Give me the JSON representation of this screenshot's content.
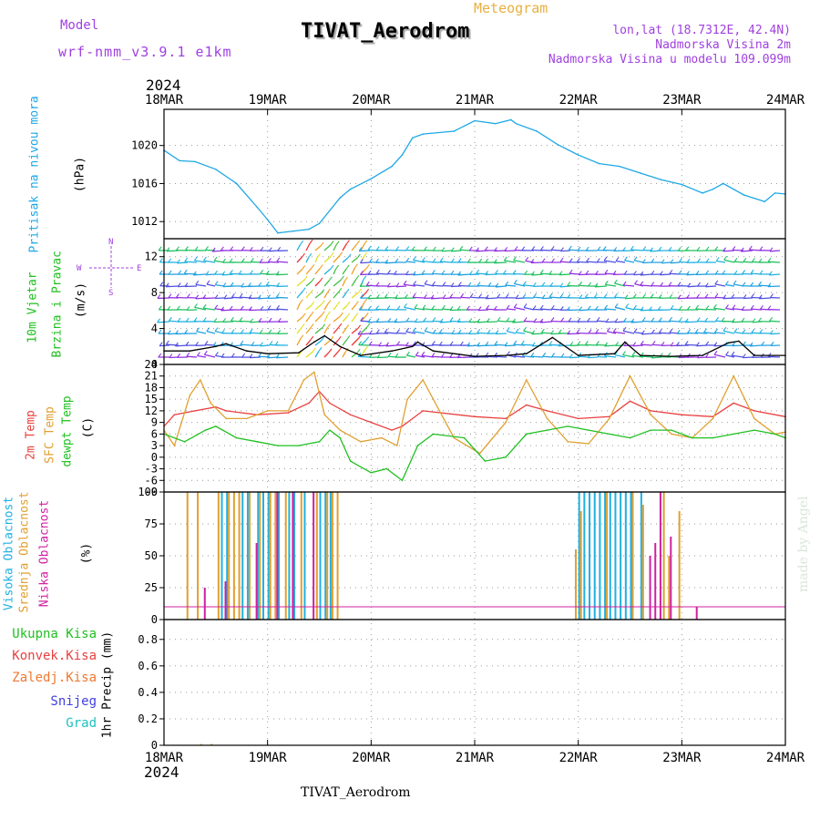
{
  "header": {
    "title": "TIVAT_Aerodrom",
    "meteogram": "Meteogram",
    "model_label": "Model",
    "model_name": "wrf-nmm_v3.9.1 e1km",
    "lonlat": "lon,lat (18.7312E, 42.4N)",
    "altitude": "Nadmorska Visina 2m",
    "model_altitude": "Nadmorska Visina u modelu 109.099m",
    "footer": "TIVAT_Aerodrom",
    "watermark": "made by Angel",
    "year_top": "2024",
    "year_bottom": "2024"
  },
  "colors": {
    "pressure": "#1ea8e6",
    "temp2m": "#e84040",
    "sfc": "#e0a030",
    "dew": "#20c020",
    "cloud_high": "#20b0e0",
    "cloud_mid": "#e0a030",
    "cloud_low": "#d020a0",
    "label_purple": "#a040e0"
  },
  "panel_labels": {
    "pressure": [
      "Pritisak na nivou mora",
      "(hPa)"
    ],
    "wind": [
      "10m Vjetar",
      "Brzina i Pravac",
      "(m/s)"
    ],
    "temp": [
      "2m Temp",
      "SFC Temp",
      "dewpt Temp",
      "(C)"
    ],
    "cloud": [
      "Visoka Oblacnost",
      "Srednja Oblacnost",
      "Niska Oblacnost",
      "(%)"
    ],
    "precip": [
      "Ukupna Kisa",
      "Konvek.Kisa",
      "Zaledj.Kisa",
      "Snijeg",
      "Grad",
      "1hr Precip (mm)"
    ],
    "compass": [
      "N",
      "S",
      "W",
      "E"
    ]
  },
  "chart_data": [
    {
      "type": "line",
      "panel": "pressure",
      "x_categories": [
        "18MAR",
        "19MAR",
        "20MAR",
        "21MAR",
        "22MAR",
        "23MAR",
        "24MAR"
      ],
      "ylabel": "(hPa)",
      "yticks": [
        "1020",
        "1016",
        "1012"
      ],
      "ylim": [
        1010.2,
        1023.8
      ],
      "series": [
        {
          "name": "Pritisak na nivou mora",
          "x": [
            0,
            0.15,
            0.3,
            0.5,
            0.7,
            0.9,
            1.0,
            1.1,
            1.25,
            1.4,
            1.5,
            1.7,
            1.8,
            2.0,
            2.2,
            2.3,
            2.4,
            2.5,
            2.8,
            3.0,
            3.2,
            3.35,
            3.4,
            3.6,
            3.8,
            4.0,
            4.2,
            4.4,
            4.6,
            4.8,
            5.0,
            5.2,
            5.3,
            5.4,
            5.6,
            5.8,
            5.9,
            6.0
          ],
          "values": [
            1019.5,
            1018.4,
            1018.3,
            1017.5,
            1016.0,
            1013.5,
            1012.2,
            1010.8,
            1011.0,
            1011.2,
            1011.8,
            1014.5,
            1015.4,
            1016.5,
            1017.8,
            1019.0,
            1020.8,
            1021.2,
            1021.5,
            1022.6,
            1022.3,
            1022.7,
            1022.3,
            1021.5,
            1020.1,
            1019.0,
            1018.1,
            1017.8,
            1017.1,
            1016.4,
            1015.9,
            1015.0,
            1015.4,
            1016.0,
            1014.8,
            1014.1,
            1015.0,
            1014.9
          ]
        }
      ]
    },
    {
      "type": "scatter",
      "panel": "wind",
      "x_categories": [
        "18MAR",
        "19MAR",
        "20MAR",
        "21MAR",
        "22MAR",
        "23MAR",
        "24MAR"
      ],
      "ylabel": "(m/s)",
      "yticks": [
        "12",
        "8",
        "4",
        "0"
      ],
      "ylim": [
        0,
        14
      ],
      "series": [
        {
          "name": "10m wind speed",
          "x": [
            0,
            0.25,
            0.5,
            0.6,
            0.8,
            1.0,
            1.3,
            1.45,
            1.55,
            1.7,
            1.9,
            2.2,
            2.4,
            2.45,
            2.6,
            3.0,
            3.3,
            3.5,
            3.75,
            4.0,
            4.35,
            4.45,
            4.6,
            4.9,
            5.2,
            5.45,
            5.55,
            5.7,
            6.0
          ],
          "values": [
            1.5,
            1.5,
            2.0,
            2.3,
            1.5,
            1.2,
            1.3,
            2.5,
            3.2,
            2.0,
            1.0,
            1.5,
            2.0,
            2.5,
            1.5,
            0.9,
            1.0,
            1.2,
            3.0,
            1.0,
            1.2,
            2.5,
            1.0,
            0.9,
            1.0,
            2.4,
            2.6,
            1.0,
            1.0
          ]
        }
      ]
    },
    {
      "type": "line",
      "panel": "temperature",
      "x_categories": [
        "18MAR",
        "19MAR",
        "20MAR",
        "21MAR",
        "22MAR",
        "23MAR",
        "24MAR"
      ],
      "ylabel": "(C)",
      "yticks": [
        "24",
        "21",
        "18",
        "15",
        "12",
        "9",
        "6",
        "3",
        "0",
        "-3",
        "-6",
        "-9"
      ],
      "ylim": [
        -9,
        24
      ],
      "series": [
        {
          "name": "2m Temp",
          "x": [
            0,
            0.1,
            0.3,
            0.5,
            0.6,
            0.9,
            1.2,
            1.4,
            1.5,
            1.6,
            1.8,
            2.0,
            2.2,
            2.3,
            2.5,
            3.0,
            3.3,
            3.5,
            3.7,
            4.0,
            4.3,
            4.5,
            4.7,
            5.0,
            5.3,
            5.5,
            5.7,
            6.0
          ],
          "values": [
            8,
            11,
            12,
            13,
            12,
            11,
            11.5,
            14,
            17,
            14,
            11,
            9,
            7,
            8,
            12,
            10.5,
            10,
            13.5,
            12,
            10,
            10.5,
            14.5,
            12,
            11,
            10.5,
            14,
            12,
            10.5
          ]
        },
        {
          "name": "SFC Temp",
          "x": [
            0,
            0.1,
            0.25,
            0.35,
            0.45,
            0.6,
            0.8,
            1.0,
            1.2,
            1.35,
            1.45,
            1.55,
            1.7,
            1.9,
            2.1,
            2.25,
            2.35,
            2.5,
            2.8,
            3.05,
            3.3,
            3.5,
            3.7,
            3.9,
            4.1,
            4.3,
            4.5,
            4.7,
            4.9,
            5.1,
            5.3,
            5.5,
            5.7,
            5.9,
            6.0
          ],
          "values": [
            7,
            3,
            16,
            20,
            14,
            10,
            10,
            12,
            12,
            20,
            22,
            11,
            7,
            4,
            5,
            3,
            15,
            20,
            5,
            1,
            9,
            20,
            10,
            4,
            3.5,
            10,
            21,
            11,
            6,
            5,
            10,
            21,
            10,
            6,
            6.5
          ]
        },
        {
          "name": "dewpt Temp",
          "x": [
            0,
            0.2,
            0.4,
            0.5,
            0.7,
            0.9,
            1.1,
            1.3,
            1.5,
            1.6,
            1.7,
            1.8,
            2.0,
            2.15,
            2.3,
            2.45,
            2.6,
            2.9,
            3.0,
            3.1,
            3.3,
            3.5,
            3.7,
            3.9,
            4.1,
            4.3,
            4.5,
            4.7,
            4.9,
            5.1,
            5.3,
            5.5,
            5.7,
            5.9,
            6.0
          ],
          "values": [
            6,
            4,
            7,
            8,
            5,
            4,
            3,
            3,
            4,
            7,
            5,
            -1,
            -4,
            -3,
            -6,
            3,
            6,
            5,
            2,
            -1,
            0,
            6,
            7,
            8,
            7,
            6,
            5,
            7,
            7,
            5,
            5,
            6,
            7,
            6,
            5
          ]
        }
      ]
    },
    {
      "type": "bar",
      "panel": "cloud",
      "x_categories": [
        "18MAR",
        "19MAR",
        "20MAR",
        "21MAR",
        "22MAR",
        "23MAR",
        "24MAR"
      ],
      "ylabel": "(%)",
      "yticks": [
        "100",
        "75",
        "50",
        "25",
        "0"
      ],
      "ylim": [
        0,
        100
      ],
      "series": [
        {
          "name": "Visoka Oblacnost",
          "x": [
            0.55,
            0.6,
            0.75,
            0.8,
            0.9,
            0.95,
            1.0,
            1.1,
            1.2,
            1.25,
            1.35,
            1.5,
            1.55,
            1.6,
            4.0,
            4.05,
            4.1,
            4.15,
            4.2,
            4.25,
            4.3,
            4.35,
            4.4,
            4.45,
            4.5,
            4.6
          ],
          "values": [
            100,
            100,
            100,
            100,
            100,
            100,
            100,
            100,
            100,
            100,
            100,
            100,
            100,
            100,
            100,
            100,
            100,
            100,
            100,
            100,
            100,
            100,
            100,
            100,
            100,
            100
          ]
        },
        {
          "name": "Srednja Oblacnost",
          "x": [
            0.2,
            0.3,
            0.5,
            0.6,
            0.65,
            0.7,
            0.8,
            0.9,
            1.0,
            1.05,
            1.15,
            1.3,
            1.45,
            1.55,
            1.6,
            1.65,
            3.95,
            4.0,
            4.25,
            4.5,
            4.6,
            4.8,
            4.85,
            4.95
          ],
          "values": [
            100,
            100,
            100,
            100,
            100,
            100,
            100,
            100,
            100,
            100,
            100,
            100,
            100,
            100,
            100,
            100,
            55,
            85,
            100,
            100,
            90,
            100,
            50,
            85
          ]
        },
        {
          "name": "Niska Oblacnost",
          "x": [
            0.35,
            0.55,
            0.85,
            1.05,
            1.2,
            1.4,
            4.65,
            4.7,
            4.75,
            4.85,
            5.1
          ],
          "values": [
            25,
            30,
            60,
            100,
            100,
            100,
            50,
            60,
            100,
            65,
            10
          ]
        }
      ]
    },
    {
      "type": "bar",
      "panel": "precipitation",
      "x_categories": [
        "18MAR",
        "19MAR",
        "20MAR",
        "21MAR",
        "22MAR",
        "23MAR",
        "24MAR"
      ],
      "ylabel": "1hr Precip (mm)",
      "yticks": [
        "0.8",
        "0.6",
        "0.4",
        "0.2",
        "0"
      ],
      "ylim": [
        0,
        0.95
      ],
      "series": [
        {
          "name": "Ukupna Kisa",
          "x": [
            0.35,
            0.45
          ],
          "values": [
            0.01,
            0.01
          ]
        }
      ]
    }
  ]
}
